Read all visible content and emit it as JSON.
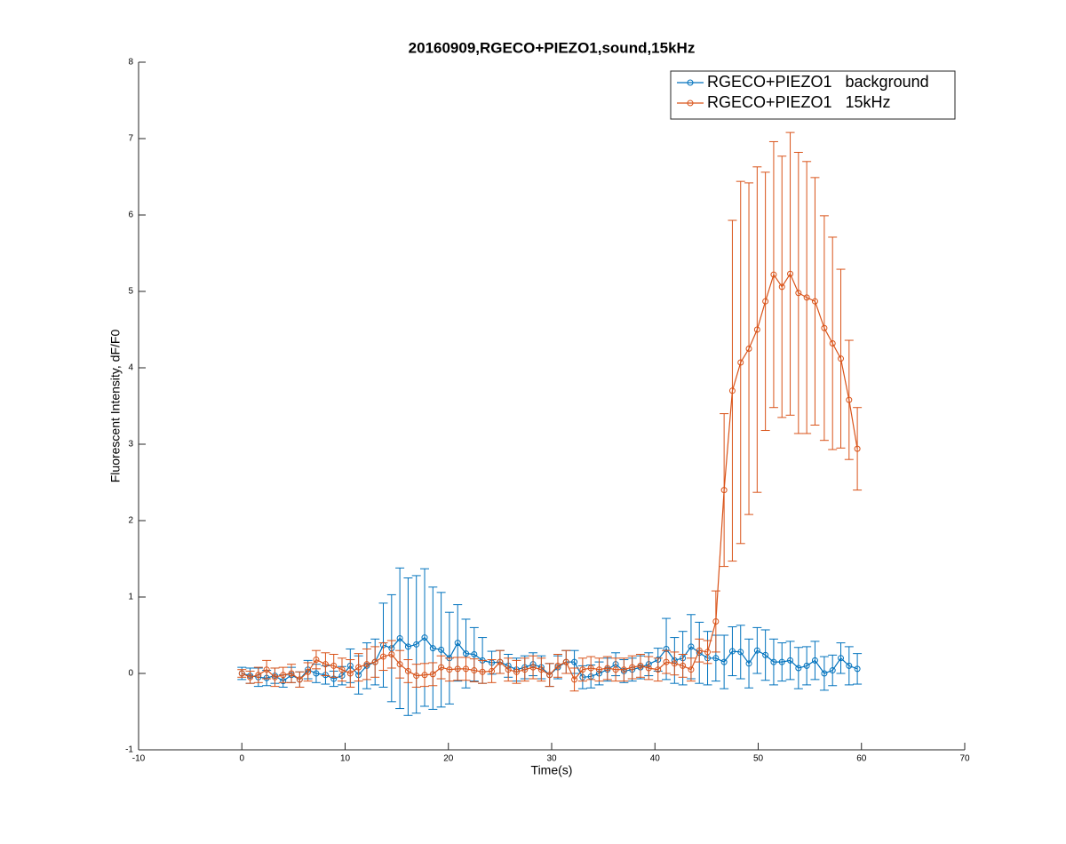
{
  "chart_data": {
    "type": "errorbar-line",
    "title": "20160909,RGECO+PIEZO1,sound,15kHz",
    "x_label": "Time(s)",
    "y_label": "Fluorescent Intensity, dF/F0",
    "xlim": [
      -10,
      70
    ],
    "xticks": [
      -10,
      0,
      10,
      20,
      30,
      40,
      50,
      60,
      70
    ],
    "ylim": [
      -1,
      8
    ],
    "yticks": [
      -1,
      0,
      1,
      2,
      3,
      4,
      5,
      6,
      7,
      8
    ],
    "legend": "northeast",
    "x": [
      0,
      0.8,
      1.6,
      2.4,
      3.2,
      4.0,
      4.8,
      5.6,
      6.4,
      7.2,
      8.1,
      8.9,
      9.7,
      10.5,
      11.3,
      12.1,
      12.9,
      13.7,
      14.5,
      15.3,
      16.1,
      16.9,
      17.7,
      18.5,
      19.3,
      20.1,
      20.9,
      21.7,
      22.5,
      23.3,
      24.2,
      25.0,
      25.8,
      26.6,
      27.4,
      28.2,
      29.0,
      29.8,
      30.6,
      31.4,
      32.2,
      33.0,
      33.8,
      34.6,
      35.4,
      36.2,
      37.0,
      37.8,
      38.6,
      39.4,
      40.3,
      41.1,
      41.9,
      42.7,
      43.5,
      44.3,
      45.1,
      45.9,
      46.7,
      47.5,
      48.3,
      49.1,
      49.9,
      50.7,
      51.5,
      52.3,
      53.1,
      53.9,
      54.7,
      55.5,
      56.4,
      57.2,
      58.0,
      58.8,
      59.6
    ],
    "series": [
      {
        "name": "RGECO+PIEZO1   background",
        "color": "#0072bd",
        "values": [
          0,
          -0.03,
          -0.05,
          -0.06,
          -0.03,
          -0.1,
          -0.02,
          -0.08,
          0.05,
          0,
          -0.02,
          -0.07,
          -0.03,
          0.1,
          -0.02,
          0.1,
          0.15,
          0.37,
          0.33,
          0.46,
          0.35,
          0.38,
          0.47,
          0.33,
          0.31,
          0.2,
          0.4,
          0.26,
          0.25,
          0.17,
          0.14,
          0.15,
          0.1,
          0.05,
          0.08,
          0.12,
          0.08,
          -0.02,
          0.08,
          0.15,
          0.15,
          -0.05,
          -0.04,
          0,
          0.05,
          0.12,
          0.03,
          0.05,
          0.08,
          0.12,
          0.18,
          0.32,
          0.17,
          0.2,
          0.35,
          0.27,
          0.2,
          0.2,
          0.15,
          0.29,
          0.28,
          0.13,
          0.3,
          0.24,
          0.15,
          0.15,
          0.17,
          0.07,
          0.1,
          0.17,
          0,
          0.04,
          0.2,
          0.1,
          0.06
        ],
        "errors": [
          0.08,
          0.1,
          0.12,
          0.1,
          0.1,
          0.08,
          0.1,
          0.1,
          0.12,
          0.12,
          0.12,
          0.1,
          0.12,
          0.22,
          0.25,
          0.3,
          0.3,
          0.55,
          0.7,
          0.92,
          0.9,
          0.9,
          0.9,
          0.8,
          0.75,
          0.6,
          0.5,
          0.45,
          0.35,
          0.3,
          0.15,
          0.15,
          0.15,
          0.15,
          0.15,
          0.15,
          0.15,
          0.15,
          0.15,
          0.15,
          0.15,
          0.15,
          0.15,
          0.15,
          0.15,
          0.15,
          0.15,
          0.15,
          0.15,
          0.15,
          0.15,
          0.4,
          0.3,
          0.35,
          0.42,
          0.4,
          0.35,
          0.3,
          0.35,
          0.32,
          0.35,
          0.32,
          0.3,
          0.33,
          0.3,
          0.25,
          0.25,
          0.27,
          0.25,
          0.25,
          0.22,
          0.2,
          0.2,
          0.25,
          0.2
        ]
      },
      {
        "name": "RGECO+PIEZO1   15kHz",
        "color": "#d95319",
        "values": [
          0,
          -0.05,
          -0.02,
          0.05,
          -0.05,
          -0.02,
          0,
          -0.08,
          0.02,
          0.18,
          0.12,
          0.1,
          0.05,
          0,
          0.08,
          0.12,
          0.15,
          0.22,
          0.25,
          0.12,
          0.03,
          -0.03,
          -0.02,
          -0.01,
          0.08,
          0.05,
          0.06,
          0.06,
          0.04,
          0.02,
          0.03,
          0.15,
          0.05,
          0.02,
          0.05,
          0.08,
          0.05,
          -0.02,
          0.1,
          0.15,
          -0.08,
          0.05,
          0.07,
          0.05,
          0.07,
          0.05,
          0.05,
          0.08,
          0.1,
          0.07,
          0.05,
          0.15,
          0.13,
          0.1,
          0.05,
          0.3,
          0.28,
          0.68,
          2.4,
          3.7,
          4.07,
          4.25,
          4.5,
          4.87,
          5.22,
          5.06,
          5.23,
          4.98,
          4.92,
          4.87,
          4.52,
          4.32,
          4.12,
          3.58,
          2.94
        ],
        "errors": [
          0.05,
          0.08,
          0.1,
          0.12,
          0.12,
          0.1,
          0.12,
          0.1,
          0.12,
          0.12,
          0.15,
          0.15,
          0.15,
          0.18,
          0.18,
          0.2,
          0.2,
          0.18,
          0.18,
          0.18,
          0.15,
          0.15,
          0.15,
          0.15,
          0.15,
          0.15,
          0.15,
          0.15,
          0.15,
          0.15,
          0.15,
          0.15,
          0.15,
          0.15,
          0.15,
          0.15,
          0.15,
          0.15,
          0.15,
          0.15,
          0.15,
          0.15,
          0.15,
          0.15,
          0.15,
          0.15,
          0.15,
          0.15,
          0.15,
          0.15,
          0.15,
          0.15,
          0.15,
          0.15,
          0.15,
          0.15,
          0.15,
          0.4,
          1.0,
          2.23,
          2.37,
          2.17,
          2.13,
          1.69,
          1.74,
          1.71,
          1.85,
          1.84,
          1.78,
          1.62,
          1.47,
          1.39,
          1.17,
          0.78,
          0.54
        ]
      }
    ]
  }
}
